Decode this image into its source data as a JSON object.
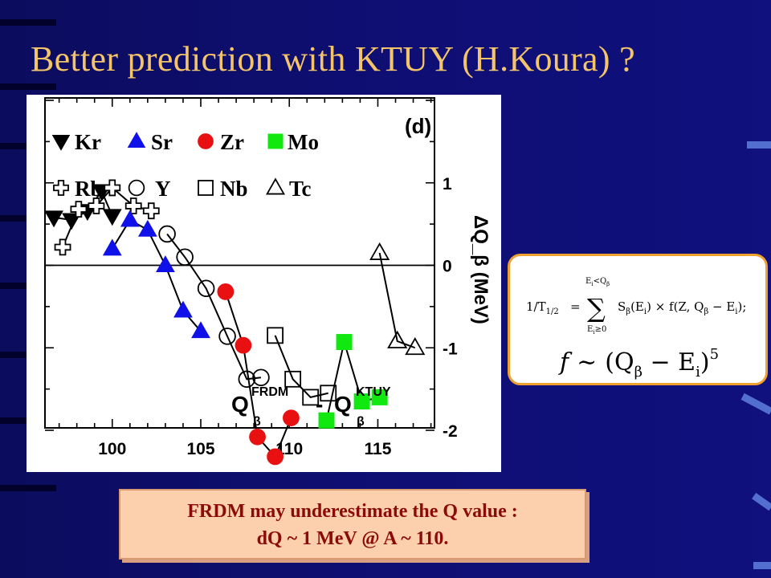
{
  "slide": {
    "title": "Better prediction with KTUY (H.Koura) ?",
    "note": {
      "line1": "FRDM may underestimate the Q value :",
      "line2_prefix": "dQ",
      "line2_value": "~ 1 MeV",
      "line2_suffix": "@ A ~ 110."
    },
    "formula": {
      "lhs": "1/T",
      "lhs_sub": "1/2",
      "equals": "=",
      "sum_symbol": "∑",
      "sum_upper": "E",
      "sum_upper_sub": "i",
      "sum_upper_rest": "<Q",
      "sum_upper_beta": "β",
      "sum_lower": "E",
      "sum_lower_sub": "i",
      "sum_lower_rest": "≥0",
      "terms": "S",
      "terms_beta": "β",
      "terms_rest": "(E",
      "terms_i": "i",
      "terms_end": ") × f(Z, Q",
      "terms_beta2": "β",
      "terms_minus": " − E",
      "terms_i2": "i",
      "terms_close": ");",
      "f_lhs": "f",
      "sim": "∼",
      "f_rhs": "(Q",
      "f_beta": "β",
      "f_minus": " − E",
      "f_i": "i",
      "f_close": ")",
      "f_exp": "5"
    },
    "colors": {
      "title": "#f4c46b",
      "note_text": "#8b0a0a",
      "note_bg": "#fcd0ac",
      "formula_border": "#f0a030",
      "blue": "#1010e8",
      "red": "#e81010",
      "green": "#10e810"
    }
  },
  "chart_data": {
    "type": "scatter",
    "panel_label": "(d)",
    "xlim": [
      96.2,
      118.2
    ],
    "ylim": [
      -2,
      2
    ],
    "x_ticks": [
      100,
      105,
      110,
      115
    ],
    "y_ticks": [
      1,
      0,
      -1,
      -2
    ],
    "y_tick_labels": [
      "1",
      "0",
      "-1",
      "-2"
    ],
    "grid": false,
    "zero_line": true,
    "ylabel": "ΔQ_β (MeV)",
    "annotation": {
      "q1": "Q",
      "sup1": "FRDM",
      "sub1": "β",
      "minus": "-",
      "q2": "Q",
      "sup2": "KTUY",
      "sub2": "β"
    },
    "legend": {
      "placement": "top-left",
      "entries": [
        {
          "label": "Kr",
          "marker": "triangle-down",
          "filled": true,
          "color": "#000000"
        },
        {
          "label": "Sr",
          "marker": "triangle-up",
          "filled": true,
          "color": "#1010e8"
        },
        {
          "label": "Zr",
          "marker": "circle",
          "filled": true,
          "color": "#e81010"
        },
        {
          "label": "Mo",
          "marker": "square",
          "filled": true,
          "color": "#10e810"
        },
        {
          "label": "Rb",
          "marker": "cross",
          "filled": false,
          "color": "#000000"
        },
        {
          "label": "Y",
          "marker": "circle",
          "filled": false,
          "color": "#000000"
        },
        {
          "label": "Nb",
          "marker": "square",
          "filled": false,
          "color": "#000000"
        },
        {
          "label": "Tc",
          "marker": "triangle-up",
          "filled": false,
          "color": "#000000"
        }
      ]
    },
    "series": [
      {
        "name": "Kr",
        "marker": "triangle-down",
        "filled": true,
        "color": "#000000",
        "x": [
          96.7,
          97.7,
          98.6,
          99.4,
          100
        ],
        "y": [
          0.58,
          0.55,
          0.66,
          0.9,
          0.6
        ]
      },
      {
        "name": "Rb",
        "marker": "cross",
        "filled": false,
        "color": "#000000",
        "x": [
          97.2,
          98.1,
          99.1,
          100,
          101.2,
          102.2
        ],
        "y": [
          0.22,
          0.68,
          0.72,
          0.94,
          0.72,
          0.66
        ]
      },
      {
        "name": "Sr",
        "marker": "triangle-up",
        "filled": true,
        "color": "#1010e8",
        "x": [
          100,
          101,
          102,
          103,
          104,
          105
        ],
        "y": [
          0.2,
          0.55,
          0.43,
          0.0,
          -0.55,
          -0.8
        ]
      },
      {
        "name": "Y",
        "marker": "circle",
        "filled": false,
        "color": "#000000",
        "x": [
          103.1,
          104.1,
          105.3,
          106.5,
          107.6,
          108.4
        ],
        "y": [
          0.38,
          0.1,
          -0.28,
          -0.86,
          -1.38,
          -1.36
        ]
      },
      {
        "name": "Zr",
        "marker": "circle",
        "filled": true,
        "color": "#e81010",
        "x": [
          106.4,
          107.4,
          108.2,
          109.2,
          110.1
        ],
        "y": [
          -0.32,
          -0.97,
          -2.08,
          -2.32,
          -1.85
        ]
      },
      {
        "name": "Nb",
        "marker": "square",
        "filled": false,
        "color": "#000000",
        "x": [
          109.2,
          110.2,
          111.2,
          112.2
        ],
        "y": [
          -0.85,
          -1.38,
          -1.6,
          -1.55
        ]
      },
      {
        "name": "Mo",
        "marker": "square",
        "filled": true,
        "color": "#10e810",
        "x": [
          112.1,
          113.1,
          114.1,
          115.1
        ],
        "y": [
          -1.88,
          -0.93,
          -1.65,
          -1.6
        ]
      },
      {
        "name": "Tc",
        "marker": "triangle-up",
        "filled": false,
        "color": "#000000",
        "x": [
          115.1,
          116.1,
          117.1
        ],
        "y": [
          0.15,
          -0.92,
          -1.0
        ]
      }
    ]
  }
}
